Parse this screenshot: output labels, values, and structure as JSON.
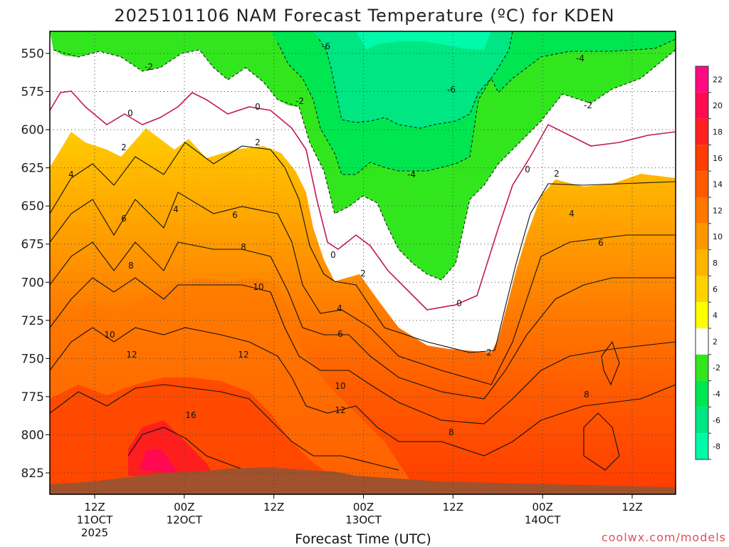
{
  "chart_data": {
    "type": "heatmap",
    "title": "2025101106 NAM Forecast Temperature (ºC) for KDEN",
    "xlabel": "Forecast Time (UTC)",
    "credit": "coolwx.com/models",
    "y_ticks": [
      "550",
      "575",
      "600",
      "625",
      "650",
      "675",
      "700",
      "725",
      "750",
      "775",
      "800",
      "825"
    ],
    "x_ticks": [
      {
        "line1": "12Z",
        "line2": "11OCT",
        "line3": "2025"
      },
      {
        "line1": "00Z",
        "line2": "12OCT",
        "line3": ""
      },
      {
        "line1": "12Z",
        "line2": "",
        "line3": ""
      },
      {
        "line1": "00Z",
        "line2": "13OCT",
        "line3": ""
      },
      {
        "line1": "12Z",
        "line2": "",
        "line3": ""
      },
      {
        "line1": "00Z",
        "line2": "14OCT",
        "line3": ""
      },
      {
        "line1": "12Z",
        "line2": "",
        "line3": ""
      }
    ],
    "colorbar": {
      "labels": [
        "22",
        "20",
        "18",
        "16",
        "14",
        "12",
        "10",
        "8",
        "6",
        "4",
        "2",
        "-2",
        "-4",
        "-6",
        "-8"
      ],
      "colors": [
        "#ff0a82",
        "#ff0a50",
        "#ff1e1e",
        "#ff3c00",
        "#ff5a00",
        "#ff7800",
        "#ff9600",
        "#ffb400",
        "#ffd200",
        "#ffff00",
        "#ffffff",
        "#32e61e",
        "#00e650",
        "#00e682",
        "#00faaa"
      ]
    },
    "contour_labels": [
      "-6",
      "-6",
      "-4",
      "-4",
      "-2",
      "-2",
      "-2",
      "0",
      "0",
      "0",
      "0",
      "0",
      "2",
      "2",
      "2",
      "2",
      "2",
      "4",
      "4",
      "4",
      "4",
      "6",
      "6",
      "6",
      "6",
      "8",
      "8",
      "8",
      "8",
      "10",
      "10",
      "10",
      "12",
      "12",
      "12",
      "16"
    ]
  }
}
